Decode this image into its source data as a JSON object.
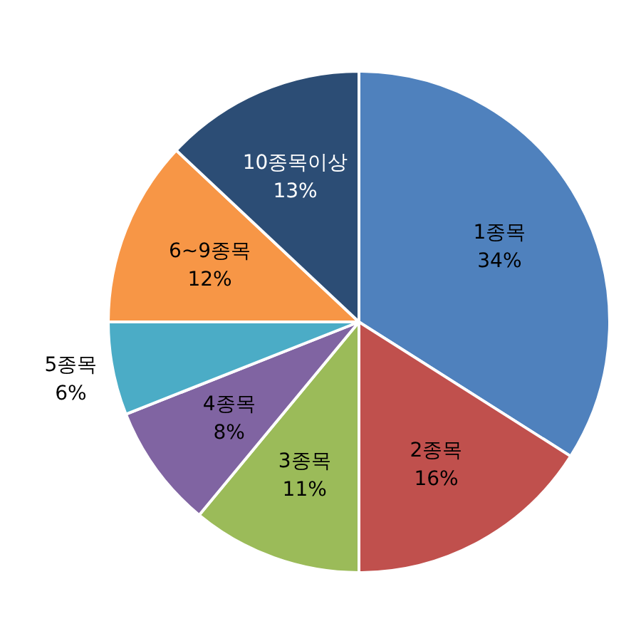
{
  "chart_data": {
    "type": "pie",
    "categories": [
      "1종목",
      "2종목",
      "3종목",
      "4종목",
      "5종목",
      "6~9종목",
      "10종목이상"
    ],
    "values": [
      34,
      16,
      11,
      8,
      6,
      12,
      13
    ],
    "colors": [
      "#4f81bd",
      "#c0504d",
      "#9bbb59",
      "#8064a2",
      "#4bacc6",
      "#f79646",
      "#2c4d75"
    ],
    "value_labels": [
      "34%",
      "16%",
      "11%",
      "8%",
      "6%",
      "12%",
      "13%"
    ]
  }
}
